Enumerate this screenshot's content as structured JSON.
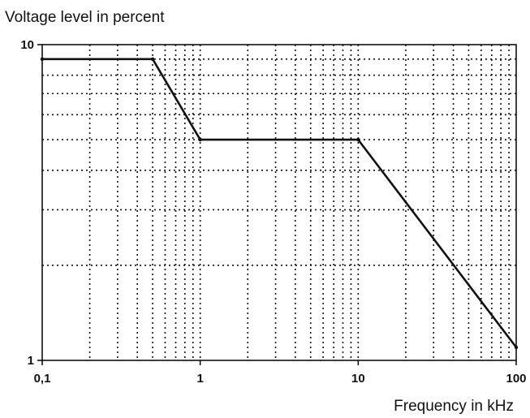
{
  "chart_data": {
    "type": "line",
    "title": "",
    "ylabel": "Voltage level in percent",
    "xlabel": "Frequency in kHz",
    "x_scale": "log",
    "y_scale": "log",
    "xlim": [
      0.1,
      100
    ],
    "ylim": [
      1,
      10
    ],
    "grid": true,
    "x_ticks": [
      {
        "value": 0.1,
        "label": "0,1"
      },
      {
        "value": 1,
        "label": "1"
      },
      {
        "value": 10,
        "label": "10"
      },
      {
        "value": 100,
        "label": "100"
      }
    ],
    "y_ticks": [
      {
        "value": 1,
        "label": "1"
      },
      {
        "value": 10,
        "label": "10"
      }
    ],
    "series": [
      {
        "x": [
          0.1,
          0.5,
          1,
          10,
          100
        ],
        "y": [
          9,
          9,
          5,
          5,
          1.1
        ]
      }
    ]
  }
}
